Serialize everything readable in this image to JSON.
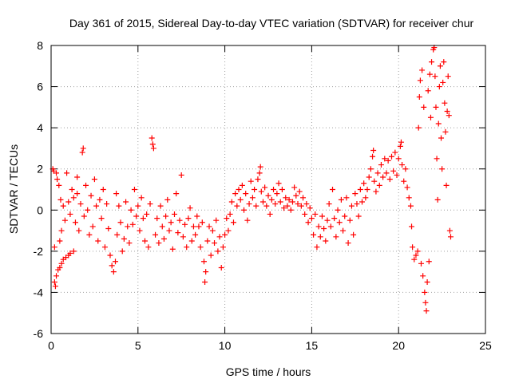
{
  "chart_data": {
    "type": "scatter",
    "title": "Day 361 of 2015, Sidereal Day-to-day VTEC variation (SDTVAR) for receiver chur",
    "xlabel": "GPS time / hours",
    "ylabel": "SDTVAR / TECUs",
    "xlim": [
      0,
      25
    ],
    "ylim": [
      -6,
      8
    ],
    "xticks": [
      0,
      5,
      10,
      15,
      20,
      25
    ],
    "yticks": [
      -6,
      -4,
      -2,
      0,
      2,
      4,
      6,
      8
    ],
    "grid": true,
    "marker": "+",
    "color": "#ff0000",
    "series": [
      {
        "name": "SDTVAR",
        "points": [
          [
            0.1,
            2.0
          ],
          [
            0.15,
            1.9
          ],
          [
            0.2,
            -1.8
          ],
          [
            0.2,
            -3.5
          ],
          [
            0.25,
            -3.7
          ],
          [
            0.3,
            -3.2
          ],
          [
            0.3,
            1.8
          ],
          [
            0.35,
            1.5
          ],
          [
            0.4,
            -2.9
          ],
          [
            0.45,
            1.2
          ],
          [
            0.5,
            -1.5
          ],
          [
            0.5,
            -2.8
          ],
          [
            0.55,
            0.5
          ],
          [
            0.6,
            -1.0
          ],
          [
            0.6,
            -2.6
          ],
          [
            0.7,
            -2.4
          ],
          [
            0.7,
            0.2
          ],
          [
            0.8,
            -0.5
          ],
          [
            0.85,
            -2.3
          ],
          [
            0.9,
            1.8
          ],
          [
            1.0,
            -2.2
          ],
          [
            1.0,
            0.4
          ],
          [
            1.1,
            -0.2
          ],
          [
            1.1,
            -2.1
          ],
          [
            1.2,
            1.0
          ],
          [
            1.3,
            -2.0
          ],
          [
            1.3,
            0.6
          ],
          [
            1.4,
            -0.6
          ],
          [
            1.5,
            0.8
          ],
          [
            1.5,
            1.6
          ],
          [
            1.6,
            -1.0
          ],
          [
            1.7,
            0.3
          ],
          [
            1.8,
            2.8
          ],
          [
            1.85,
            3.0
          ],
          [
            1.9,
            -0.3
          ],
          [
            2.0,
            1.2
          ],
          [
            2.1,
            0.0
          ],
          [
            2.2,
            -1.2
          ],
          [
            2.3,
            0.7
          ],
          [
            2.4,
            -0.8
          ],
          [
            2.5,
            1.5
          ],
          [
            2.6,
            0.2
          ],
          [
            2.7,
            -1.5
          ],
          [
            2.8,
            0.5
          ],
          [
            2.9,
            -0.4
          ],
          [
            3.0,
            1.0
          ],
          [
            3.1,
            -1.8
          ],
          [
            3.2,
            0.3
          ],
          [
            3.3,
            -0.9
          ],
          [
            3.4,
            -2.2
          ],
          [
            3.5,
            -2.7
          ],
          [
            3.6,
            -3.0
          ],
          [
            3.7,
            -2.5
          ],
          [
            3.75,
            0.8
          ],
          [
            3.8,
            -1.2
          ],
          [
            3.9,
            0.2
          ],
          [
            4.0,
            -0.6
          ],
          [
            4.1,
            -2.0
          ],
          [
            4.2,
            -1.4
          ],
          [
            4.3,
            0.4
          ],
          [
            4.4,
            -0.8
          ],
          [
            4.5,
            -1.6
          ],
          [
            4.6,
            0.0
          ],
          [
            4.7,
            -0.7
          ],
          [
            4.8,
            1.0
          ],
          [
            4.9,
            -0.3
          ],
          [
            5.0,
            0.2
          ],
          [
            5.1,
            -1.0
          ],
          [
            5.2,
            0.6
          ],
          [
            5.3,
            -0.4
          ],
          [
            5.4,
            -1.5
          ],
          [
            5.5,
            -0.2
          ],
          [
            5.6,
            -1.8
          ],
          [
            5.7,
            0.3
          ],
          [
            5.8,
            3.5
          ],
          [
            5.85,
            3.2
          ],
          [
            5.9,
            3.0
          ],
          [
            6.0,
            -1.2
          ],
          [
            6.1,
            -0.4
          ],
          [
            6.2,
            -1.6
          ],
          [
            6.3,
            0.2
          ],
          [
            6.4,
            -0.8
          ],
          [
            6.5,
            -1.4
          ],
          [
            6.6,
            -0.3
          ],
          [
            6.7,
            0.5
          ],
          [
            6.8,
            -1.0
          ],
          [
            6.9,
            -0.6
          ],
          [
            7.0,
            -1.9
          ],
          [
            7.1,
            -0.2
          ],
          [
            7.2,
            0.8
          ],
          [
            7.3,
            -1.1
          ],
          [
            7.4,
            -0.5
          ],
          [
            7.5,
            1.7
          ],
          [
            7.6,
            -1.3
          ],
          [
            7.7,
            -0.7
          ],
          [
            7.8,
            -1.8
          ],
          [
            7.9,
            -0.4
          ],
          [
            8.0,
            0.1
          ],
          [
            8.1,
            -1.5
          ],
          [
            8.2,
            -0.8
          ],
          [
            8.3,
            -1.2
          ],
          [
            8.4,
            -0.3
          ],
          [
            8.5,
            -0.8
          ],
          [
            8.6,
            -1.8
          ],
          [
            8.7,
            -0.6
          ],
          [
            8.8,
            -2.5
          ],
          [
            8.85,
            -3.5
          ],
          [
            8.9,
            -3.0
          ],
          [
            9.0,
            -1.5
          ],
          [
            9.1,
            -0.8
          ],
          [
            9.2,
            -2.2
          ],
          [
            9.3,
            -1.0
          ],
          [
            9.4,
            -1.6
          ],
          [
            9.5,
            -0.5
          ],
          [
            9.6,
            -2.0
          ],
          [
            9.7,
            -1.3
          ],
          [
            9.8,
            -2.8
          ],
          [
            9.9,
            -1.8
          ],
          [
            10.0,
            -1.2
          ],
          [
            10.1,
            -0.4
          ],
          [
            10.2,
            -1.0
          ],
          [
            10.3,
            -0.2
          ],
          [
            10.4,
            0.4
          ],
          [
            10.5,
            -0.6
          ],
          [
            10.6,
            0.8
          ],
          [
            10.7,
            0.2
          ],
          [
            10.8,
            1.0
          ],
          [
            10.9,
            0.5
          ],
          [
            11.0,
            1.2
          ],
          [
            11.1,
            0.0
          ],
          [
            11.2,
            0.8
          ],
          [
            11.3,
            -0.5
          ],
          [
            11.4,
            0.3
          ],
          [
            11.5,
            1.4
          ],
          [
            11.6,
            0.6
          ],
          [
            11.7,
            1.0
          ],
          [
            11.8,
            0.2
          ],
          [
            11.9,
            1.5
          ],
          [
            12.0,
            1.8
          ],
          [
            12.05,
            2.1
          ],
          [
            12.1,
            0.9
          ],
          [
            12.2,
            0.4
          ],
          [
            12.3,
            1.1
          ],
          [
            12.4,
            0.2
          ],
          [
            12.5,
            0.7
          ],
          [
            12.6,
            -0.2
          ],
          [
            12.7,
            0.5
          ],
          [
            12.8,
            1.0
          ],
          [
            12.9,
            0.3
          ],
          [
            13.0,
            0.8
          ],
          [
            13.1,
            1.3
          ],
          [
            13.2,
            0.4
          ],
          [
            13.3,
            1.0
          ],
          [
            13.4,
            0.1
          ],
          [
            13.5,
            0.6
          ],
          [
            13.6,
            0.2
          ],
          [
            13.7,
            0.5
          ],
          [
            13.8,
            0.0
          ],
          [
            13.9,
            0.4
          ],
          [
            14.0,
            1.1
          ],
          [
            14.1,
            0.7
          ],
          [
            14.2,
            0.3
          ],
          [
            14.3,
            0.9
          ],
          [
            14.4,
            0.2
          ],
          [
            14.5,
            0.6
          ],
          [
            14.6,
            -0.2
          ],
          [
            14.7,
            0.3
          ],
          [
            14.8,
            -0.6
          ],
          [
            14.9,
            0.1
          ],
          [
            15.0,
            -0.4
          ],
          [
            15.1,
            -1.2
          ],
          [
            15.2,
            -0.2
          ],
          [
            15.3,
            -1.8
          ],
          [
            15.4,
            -0.8
          ],
          [
            15.5,
            -1.3
          ],
          [
            15.6,
            -0.3
          ],
          [
            15.7,
            -0.9
          ],
          [
            15.8,
            -1.5
          ],
          [
            15.9,
            -0.5
          ],
          [
            16.0,
            0.3
          ],
          [
            16.1,
            -0.8
          ],
          [
            16.2,
            1.0
          ],
          [
            16.3,
            -0.4
          ],
          [
            16.4,
            -1.3
          ],
          [
            16.5,
            0.0
          ],
          [
            16.6,
            -0.6
          ],
          [
            16.7,
            0.5
          ],
          [
            16.8,
            -1.0
          ],
          [
            16.9,
            -0.3
          ],
          [
            17.0,
            0.6
          ],
          [
            17.1,
            -1.6
          ],
          [
            17.2,
            -0.5
          ],
          [
            17.3,
            0.2
          ],
          [
            17.4,
            -1.2
          ],
          [
            17.5,
            0.8
          ],
          [
            17.6,
            0.3
          ],
          [
            17.7,
            -0.3
          ],
          [
            17.8,
            1.0
          ],
          [
            17.9,
            0.4
          ],
          [
            18.0,
            1.3
          ],
          [
            18.1,
            0.6
          ],
          [
            18.2,
            1.0
          ],
          [
            18.3,
            1.6
          ],
          [
            18.4,
            2.0
          ],
          [
            18.5,
            2.6
          ],
          [
            18.55,
            2.9
          ],
          [
            18.6,
            1.4
          ],
          [
            18.7,
            0.9
          ],
          [
            18.8,
            1.8
          ],
          [
            18.9,
            1.2
          ],
          [
            19.0,
            2.2
          ],
          [
            19.1,
            1.6
          ],
          [
            19.2,
            2.5
          ],
          [
            19.3,
            1.8
          ],
          [
            19.4,
            2.4
          ],
          [
            19.5,
            1.5
          ],
          [
            19.6,
            2.6
          ],
          [
            19.7,
            1.9
          ],
          [
            19.8,
            2.8
          ],
          [
            19.9,
            1.7
          ],
          [
            20.0,
            2.5
          ],
          [
            20.1,
            3.1
          ],
          [
            20.15,
            3.3
          ],
          [
            20.2,
            2.2
          ],
          [
            20.3,
            1.4
          ],
          [
            20.4,
            2.0
          ],
          [
            20.5,
            1.1
          ],
          [
            20.6,
            0.6
          ],
          [
            20.7,
            0.2
          ],
          [
            20.75,
            -0.8
          ],
          [
            20.8,
            -1.8
          ],
          [
            20.9,
            -2.4
          ],
          [
            21.0,
            -2.2
          ],
          [
            21.1,
            -2.0
          ],
          [
            21.15,
            4.0
          ],
          [
            21.2,
            5.5
          ],
          [
            21.25,
            6.3
          ],
          [
            21.3,
            -2.6
          ],
          [
            21.35,
            6.8
          ],
          [
            21.4,
            -3.2
          ],
          [
            21.45,
            5.0
          ],
          [
            21.5,
            -4.0
          ],
          [
            21.55,
            -4.5
          ],
          [
            21.6,
            -4.9
          ],
          [
            21.65,
            -3.5
          ],
          [
            21.7,
            5.8
          ],
          [
            21.75,
            -2.5
          ],
          [
            21.8,
            6.6
          ],
          [
            21.85,
            4.5
          ],
          [
            21.9,
            7.2
          ],
          [
            22.0,
            7.8
          ],
          [
            22.05,
            7.9
          ],
          [
            22.1,
            6.5
          ],
          [
            22.15,
            5.0
          ],
          [
            22.2,
            2.5
          ],
          [
            22.25,
            0.5
          ],
          [
            22.3,
            4.2
          ],
          [
            22.35,
            6.0
          ],
          [
            22.4,
            7.0
          ],
          [
            22.45,
            3.5
          ],
          [
            22.5,
            2.0
          ],
          [
            22.55,
            6.2
          ],
          [
            22.6,
            7.2
          ],
          [
            22.65,
            5.2
          ],
          [
            22.7,
            3.8
          ],
          [
            22.75,
            1.2
          ],
          [
            22.8,
            4.8
          ],
          [
            22.85,
            6.5
          ],
          [
            22.9,
            4.6
          ],
          [
            22.95,
            -1.0
          ],
          [
            23.0,
            -1.3
          ]
        ]
      }
    ]
  }
}
